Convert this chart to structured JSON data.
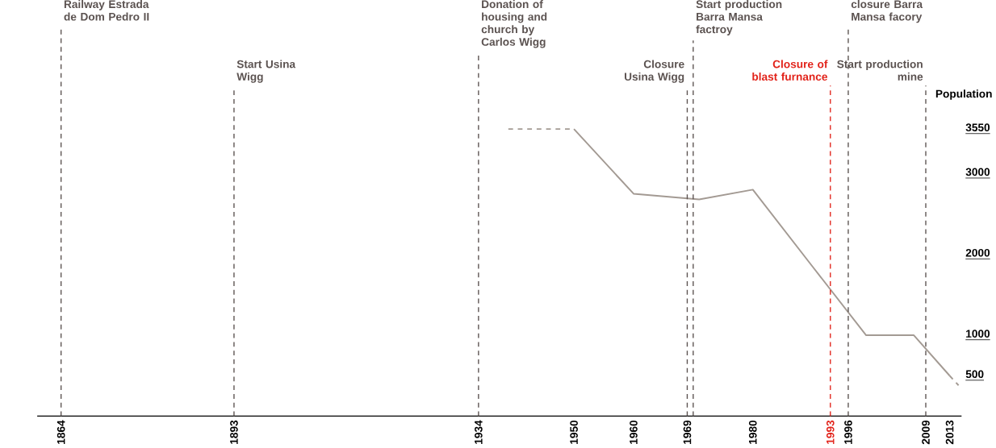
{
  "chart_data": {
    "type": "line",
    "ylabel": "Population",
    "xlim": [
      1860,
      2015
    ],
    "ylim": [
      0,
      3550
    ],
    "xticks": [
      1864,
      1893,
      1934,
      1950,
      1960,
      1969,
      1980,
      1993,
      1996,
      2009,
      2013
    ],
    "yticks": [
      500,
      1000,
      2000,
      3000,
      3550
    ],
    "marker": "none",
    "series": [
      {
        "color": "#a39a93",
        "line_style": "dashed",
        "x": [
          1939,
          1950
        ],
        "values": [
          3550,
          3550
        ]
      },
      {
        "color": "#a39a93",
        "line_style": "solid",
        "x": [
          1950,
          1960,
          1971,
          1980,
          1990,
          1999,
          2007,
          2013
        ],
        "values": [
          3550,
          2750,
          2680,
          2800,
          1850,
          1000,
          1000,
          500
        ]
      },
      {
        "color": "#a39a93",
        "line_style": "dashed",
        "x": [
          2013,
          2014.5
        ],
        "values": [
          500,
          380
        ]
      }
    ],
    "ref_lines": [
      {
        "axis": "x",
        "value": 1864,
        "label": "Railway Estrada de Dom Pedro II",
        "line_style": "dashed"
      },
      {
        "axis": "x",
        "value": 1893,
        "label": "Start Usina Wigg",
        "line_style": "dashed"
      },
      {
        "axis": "x",
        "value": 1934,
        "label": "Donation of housing and church by Carlos Wigg",
        "line_style": "dashed"
      },
      {
        "axis": "x",
        "value": 1969,
        "label": "Closure Usina Wigg",
        "line_style": "dashed"
      },
      {
        "axis": "x",
        "value": 1970,
        "label": "Start production Barra Mansa factroy",
        "line_style": "dashed"
      },
      {
        "axis": "x",
        "value": 1993,
        "label": "Closure of blast furnance",
        "line_style": "dashed",
        "color": "#e2231a"
      },
      {
        "axis": "x",
        "value": 1996,
        "label": "closure Barra Mansa facory",
        "line_style": "dashed"
      },
      {
        "axis": "x",
        "value": 2009,
        "label": "Start production mine",
        "line_style": "dashed"
      }
    ]
  }
}
